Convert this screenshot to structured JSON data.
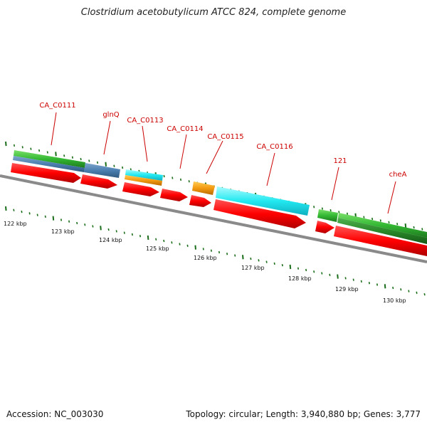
{
  "title": "Clostridium acetobutylicum ATCC 824, complete genome",
  "footer": {
    "accession": "Accession: NC_003030",
    "summary": "Topology: circular; Length: 3,940,880 bp; Genes: 3,777"
  },
  "colors": {
    "label": "#cc0000",
    "cds_arrow": "#ff0000",
    "backbone": "#888888",
    "tick": "#1a6e1a"
  },
  "gene_labels": [
    "CA_C0111",
    "glnQ",
    "CA_C0113",
    "CA_C0114",
    "CA_C0115",
    "CA_C0116",
    "121",
    "cheA"
  ],
  "axis_ticks": [
    "122 kbp",
    "123 kbp",
    "124 kbp",
    "125 kbp",
    "126 kbp",
    "127 kbp",
    "128 kbp",
    "129 kbp",
    "130 kbp"
  ]
}
